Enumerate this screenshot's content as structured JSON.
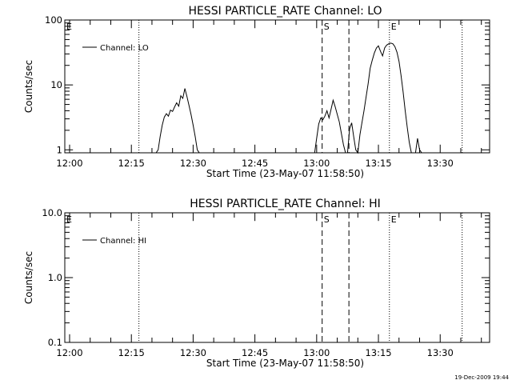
{
  "timestamp": "19-Dec-2009 19:44",
  "chart_data": [
    {
      "type": "line",
      "title": "HESSI PARTICLE_RATE Channel: LO",
      "xlabel": "Start Time (23-May-07 11:58:50)",
      "ylabel": "Counts/sec",
      "y_scale": "log",
      "xlim": [
        "11:58:50",
        "13:42:00"
      ],
      "ylim": [
        0.9,
        100
      ],
      "x_ticks": [
        "12:00",
        "12:15",
        "12:30",
        "12:45",
        "13:00",
        "13:15",
        "13:30"
      ],
      "y_ticks": [
        "1",
        "10",
        "100"
      ],
      "legend": "top-left",
      "series": [
        {
          "name": "Channel: LO",
          "x": [
            "12:21:00",
            "12:21:30",
            "12:22:00",
            "12:22:30",
            "12:23:00",
            "12:23:30",
            "12:24:00",
            "12:24:30",
            "12:25:00",
            "12:25:30",
            "12:26:00",
            "12:26:30",
            "12:27:00",
            "12:27:30",
            "12:28:00",
            "12:28:30",
            "12:29:00",
            "12:29:30",
            "12:30:00",
            "12:30:30",
            "12:31:00",
            "12:31:30",
            "12:59:30",
            "13:00:00",
            "13:00:30",
            "13:01:00",
            "13:01:30",
            "13:02:00",
            "13:02:30",
            "13:03:00",
            "13:03:30",
            "13:04:00",
            "13:04:30",
            "13:05:00",
            "13:05:30",
            "13:06:00",
            "13:06:30",
            "13:07:00",
            "13:07:30",
            "13:08:00",
            "13:08:30",
            "13:09:00",
            "13:09:30",
            "13:10:00",
            "13:10:30",
            "13:11:00",
            "13:11:30",
            "13:12:00",
            "13:12:30",
            "13:13:00",
            "13:13:30",
            "13:14:00",
            "13:14:30",
            "13:15:00",
            "13:15:30",
            "13:16:00",
            "13:16:30",
            "13:17:00",
            "13:17:30",
            "13:18:00",
            "13:18:30",
            "13:19:00",
            "13:19:30",
            "13:20:00",
            "13:20:30",
            "13:21:00",
            "13:21:30",
            "13:22:00",
            "13:22:30",
            "13:23:00",
            "13:23:30",
            "13:24:00",
            "13:24:30",
            "13:25:00",
            "13:25:30"
          ],
          "y": [
            0.8,
            1.0,
            1.6,
            2.4,
            3.2,
            3.6,
            3.3,
            4.1,
            3.9,
            4.6,
            5.3,
            4.7,
            6.8,
            6.2,
            8.8,
            6.6,
            4.8,
            3.5,
            2.4,
            1.6,
            1.0,
            0.8,
            0.8,
            1.5,
            2.5,
            3.1,
            2.9,
            3.3,
            4.0,
            3.1,
            4.2,
            5.8,
            4.6,
            3.5,
            2.7,
            1.8,
            1.2,
            0.8,
            0.8,
            2.1,
            2.6,
            1.6,
            1.0,
            0.8,
            1.7,
            2.6,
            4.0,
            6.5,
            10.5,
            18,
            24,
            31,
            37,
            40,
            33,
            28,
            37,
            41,
            43,
            44,
            43,
            39,
            32,
            23,
            14,
            7.8,
            4.0,
            2.2,
            1.3,
            0.8,
            0.8,
            0.8,
            1.5,
            1.0,
            0.8
          ]
        }
      ],
      "annotations": [
        {
          "label": "E",
          "x": "11:58:50",
          "style": "dotted"
        },
        {
          "label": "",
          "x": "12:16:50",
          "style": "dotted"
        },
        {
          "label": "S",
          "x": "13:01:20",
          "style": "dashed"
        },
        {
          "label": "",
          "x": "13:07:50",
          "style": "dashed"
        },
        {
          "label": "E",
          "x": "13:17:40",
          "style": "dotted"
        },
        {
          "label": "",
          "x": "13:35:20",
          "style": "dotted"
        }
      ]
    },
    {
      "type": "line",
      "title": "HESSI PARTICLE_RATE Channel: HI",
      "xlabel": "Start Time (23-May-07 11:58:50)",
      "ylabel": "Counts/sec",
      "y_scale": "log",
      "xlim": [
        "11:58:50",
        "13:42:00"
      ],
      "ylim": [
        0.1,
        10
      ],
      "x_ticks": [
        "12:00",
        "12:15",
        "12:30",
        "12:45",
        "13:00",
        "13:15",
        "13:30"
      ],
      "y_ticks": [
        "0.1",
        "1.0",
        "10.0"
      ],
      "legend": "top-left",
      "series": [
        {
          "name": "Channel: HI",
          "x": [],
          "y": []
        }
      ],
      "annotations": [
        {
          "label": "E",
          "x": "11:58:50",
          "style": "dotted"
        },
        {
          "label": "",
          "x": "12:16:50",
          "style": "dotted"
        },
        {
          "label": "S",
          "x": "13:01:20",
          "style": "dashed"
        },
        {
          "label": "",
          "x": "13:07:50",
          "style": "dashed"
        },
        {
          "label": "E",
          "x": "13:17:40",
          "style": "dotted"
        },
        {
          "label": "",
          "x": "13:35:20",
          "style": "dotted"
        }
      ]
    }
  ]
}
